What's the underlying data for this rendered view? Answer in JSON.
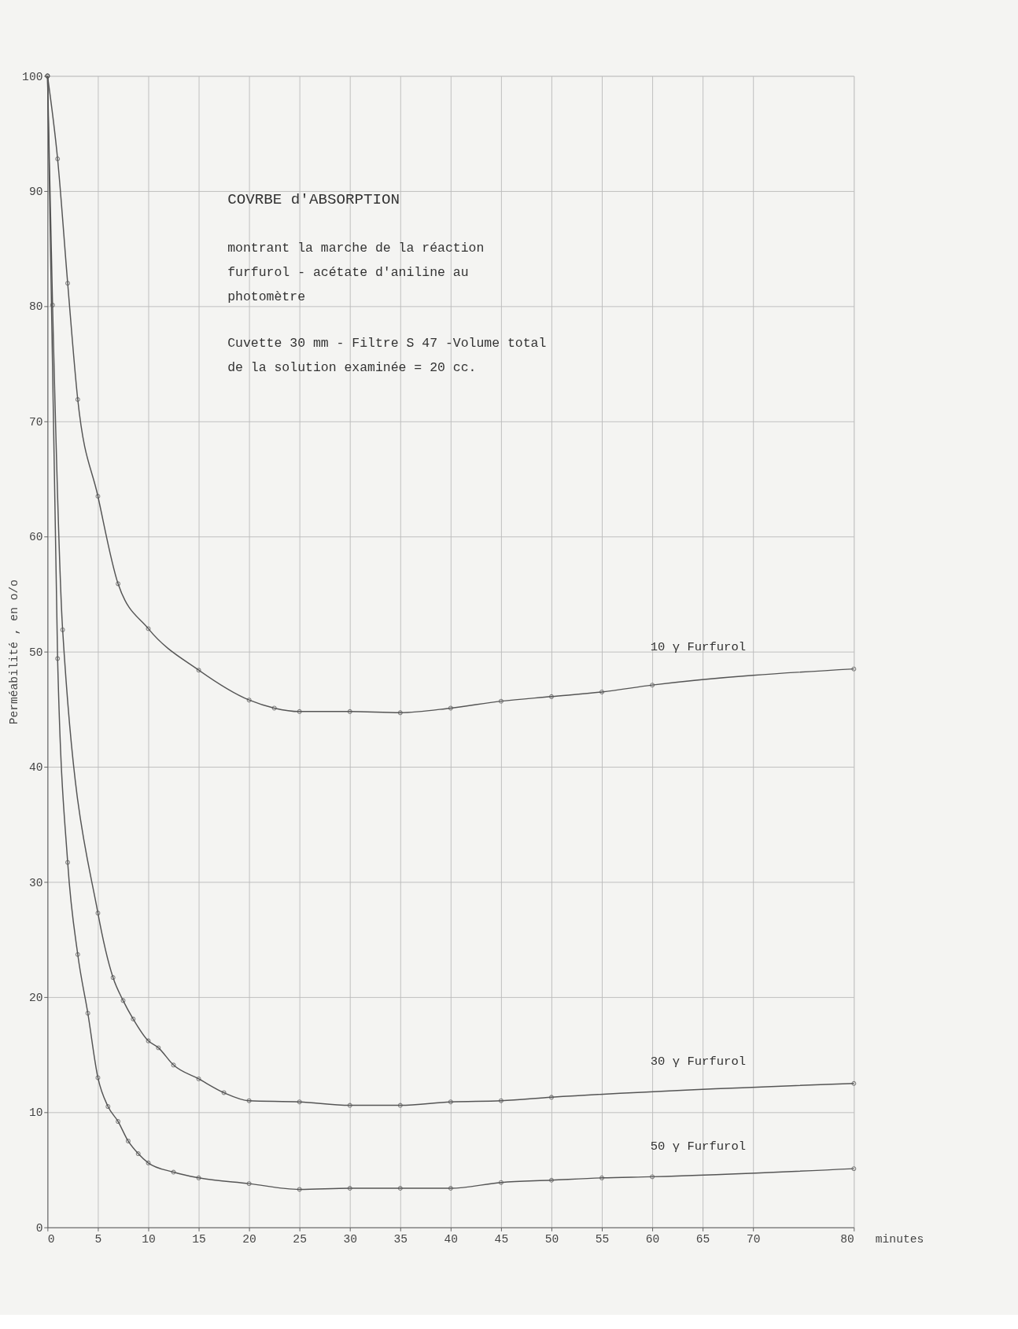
{
  "chart_data": {
    "type": "line",
    "title": "COVRBE d'ABSORPTION",
    "annotations": [
      "montrant la marche de la réaction\nfurfurol - acétate d'aniline au\nphotomètre",
      "Cuvette 30 mm - Filtre S 47 -Volume total\nde la solution examinée = 20 cc."
    ],
    "xlabel": "minutes",
    "ylabel": "Perméabilité , en o/o",
    "xlim": [
      0,
      80
    ],
    "xticks": [
      0,
      5,
      10,
      15,
      20,
      25,
      30,
      35,
      40,
      45,
      50,
      55,
      60,
      65,
      70,
      80
    ],
    "ylim": [
      0,
      100
    ],
    "yticks": [
      0,
      10,
      20,
      30,
      40,
      50,
      60,
      70,
      80,
      90,
      100
    ],
    "grid": true,
    "legend": false,
    "marker": "circle",
    "line_style": "solid",
    "series": [
      {
        "name": "10 γ Furfurol",
        "color": "#555555",
        "x": [
          0,
          1,
          2,
          3,
          5,
          7,
          10,
          15,
          20,
          22.5,
          25,
          30,
          35,
          40,
          45,
          50,
          55,
          60,
          80
        ],
        "values": [
          100,
          92.8,
          82.0,
          71.9,
          63.5,
          55.9,
          52.0,
          48.4,
          45.8,
          45.1,
          44.8,
          44.8,
          44.7,
          45.1,
          45.7,
          46.1,
          46.5,
          47.1,
          48.5
        ]
      },
      {
        "name": "30 γ Furfurol",
        "color": "#555555",
        "x": [
          0,
          0.5,
          1.5,
          5,
          6.5,
          7.5,
          8.5,
          10,
          11,
          12.5,
          15,
          17.5,
          20,
          25,
          30,
          35,
          40,
          45,
          50,
          80
        ],
        "values": [
          100,
          80.1,
          51.9,
          27.3,
          21.7,
          19.7,
          18.1,
          16.2,
          15.6,
          14.1,
          12.9,
          11.7,
          11.0,
          10.9,
          10.6,
          10.6,
          10.9,
          11.0,
          11.3,
          12.5
        ]
      },
      {
        "name": "50 γ Furfurol",
        "color": "#555555",
        "x": [
          0,
          1,
          2,
          3,
          4,
          5,
          6,
          7,
          8,
          9,
          10,
          12.5,
          15,
          20,
          25,
          30,
          35,
          40,
          45,
          50,
          55,
          60,
          80
        ],
        "values": [
          100,
          49.4,
          31.7,
          23.7,
          18.6,
          13.0,
          10.5,
          9.2,
          7.5,
          6.4,
          5.6,
          4.8,
          4.3,
          3.8,
          3.3,
          3.4,
          3.4,
          3.4,
          3.9,
          4.1,
          4.3,
          4.4,
          5.1
        ]
      }
    ]
  }
}
